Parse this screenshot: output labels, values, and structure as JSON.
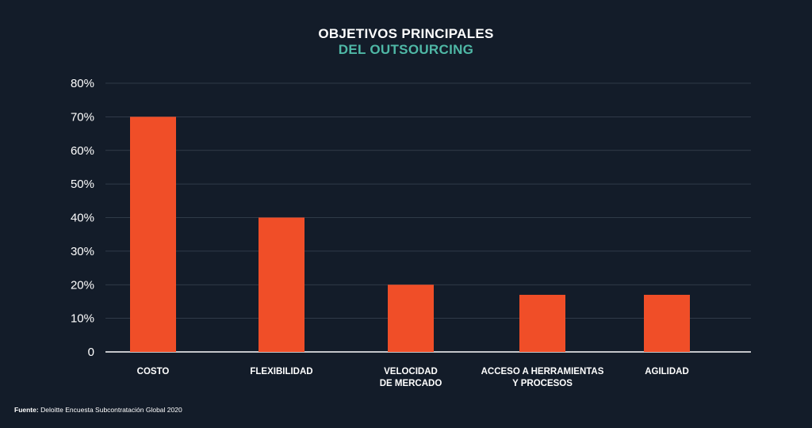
{
  "source": {
    "label": "Fuente:",
    "text": "Deloitte Encuesta Subcontratación Global 2020"
  },
  "colors": {
    "background": "#131c29",
    "bar": "#f04e28",
    "title_accent": "#4fb8a6",
    "grid": "#3a4452"
  },
  "chart_data": {
    "type": "bar",
    "title_line1": "OBJETIVOS PRINCIPALES",
    "title_line2": "DEL OUTSOURCING",
    "categories": [
      [
        "COSTO"
      ],
      [
        "FLEXIBILIDAD"
      ],
      [
        "VELOCIDAD",
        "DE MERCADO"
      ],
      [
        "ACCESO A HERRAMIENTAS",
        "Y PROCESOS"
      ],
      [
        "AGILIDAD"
      ]
    ],
    "values": [
      70,
      40,
      20,
      17,
      17
    ],
    "ylim": [
      0,
      80
    ],
    "yticks": [
      0,
      10,
      20,
      30,
      40,
      50,
      60,
      70,
      80
    ],
    "ytick_labels": [
      "0",
      "10%",
      "20%",
      "30%",
      "40%",
      "50%",
      "60%",
      "70%",
      "80%"
    ],
    "grid": true
  }
}
